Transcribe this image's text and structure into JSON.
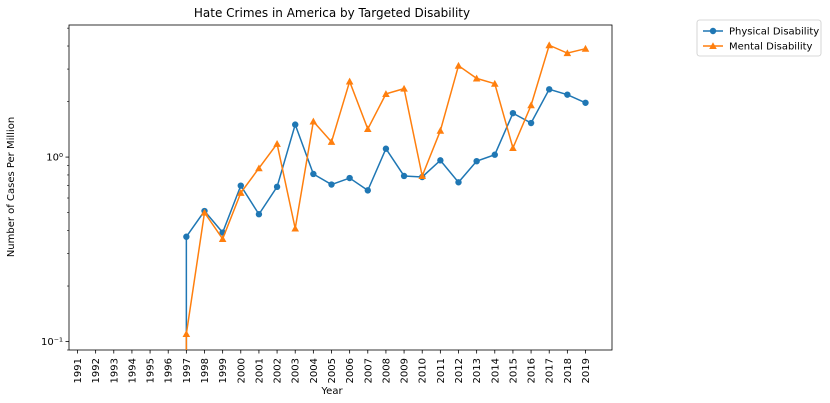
{
  "chart_data": {
    "type": "line",
    "title": "Hate Crimes in America by Targeted Disability",
    "xlabel": "Year",
    "ylabel": "Number of Cases Per Million",
    "yscale": "log",
    "ylim": [
      0.09,
      5.2
    ],
    "y_ticks": [
      {
        "value": 0.1,
        "label": "10⁻¹"
      },
      {
        "value": 1,
        "label": "10⁰"
      }
    ],
    "categories": [
      "1991",
      "1992",
      "1993",
      "1994",
      "1995",
      "1996",
      "1997",
      "1998",
      "1999",
      "2000",
      "2001",
      "2002",
      "2003",
      "2004",
      "2005",
      "2006",
      "2007",
      "2008",
      "2009",
      "2010",
      "2011",
      "2012",
      "2013",
      "2014",
      "2015",
      "2016",
      "2017",
      "2018",
      "2019"
    ],
    "legend_position": "outside-top-right",
    "grid": false,
    "series": [
      {
        "name": "Physical Disability",
        "color": "#1f77b4",
        "marker": "circle",
        "values": [
          0,
          0,
          0,
          0,
          0,
          0,
          0.37,
          0.51,
          0.39,
          0.7,
          0.49,
          0.69,
          1.5,
          0.81,
          0.71,
          0.77,
          0.66,
          1.11,
          0.79,
          0.78,
          0.96,
          0.73,
          0.95,
          1.03,
          1.73,
          1.53,
          2.33,
          2.18,
          1.97
        ]
      },
      {
        "name": "Mental Disability",
        "color": "#ff7f0e",
        "marker": "triangle",
        "values": [
          0,
          0,
          0,
          0,
          0,
          0,
          0.11,
          0.5,
          0.36,
          0.64,
          0.87,
          1.18,
          0.41,
          1.56,
          1.21,
          2.57,
          1.42,
          2.2,
          2.35,
          0.79,
          1.39,
          3.13,
          2.67,
          2.5,
          1.12,
          1.91,
          4.04,
          3.66,
          3.87
        ]
      }
    ]
  }
}
